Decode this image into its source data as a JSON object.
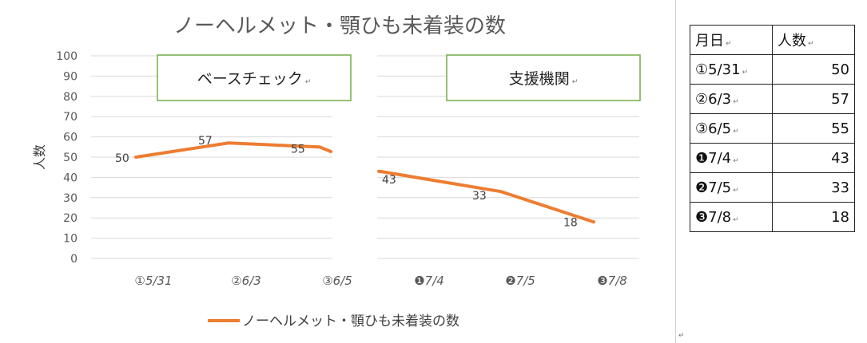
{
  "chart_data": {
    "type": "line",
    "title": "ノーヘルメット・顎ひも未着装の数",
    "ylabel": "人数",
    "xlabel": "",
    "ylim": [
      0,
      100
    ],
    "yticks": [
      0,
      10,
      20,
      30,
      40,
      50,
      60,
      70,
      80,
      90,
      100
    ],
    "categories": [
      "①5/31",
      "②6/3",
      "③6/5",
      "❶7/4",
      "❷7/5",
      "❸7/8"
    ],
    "series": [
      {
        "name": "ノーヘルメット・顎ひも未着装の数",
        "values": [
          50,
          57,
          55,
          43,
          33,
          18
        ],
        "color": "#ED7D31"
      }
    ],
    "segments": [
      {
        "label": "ベースチェック",
        "categories": [
          "①5/31",
          "②6/3",
          "③6/5"
        ]
      },
      {
        "label": "支援機関",
        "categories": [
          "❶7/4",
          "❷7/5",
          "❸7/8"
        ]
      }
    ],
    "legend_position": "bottom",
    "grid": true
  },
  "colors": {
    "box_border": "#70AD47",
    "gridline": "#d9d9d9",
    "line": "#ED7D31"
  },
  "table": {
    "headers": {
      "date": "月日",
      "count": "人数"
    },
    "rows": [
      {
        "date": "①5/31",
        "count": "50"
      },
      {
        "date": "②6/3",
        "count": "57"
      },
      {
        "date": "③6/5",
        "count": "55"
      },
      {
        "date": "❶7/4",
        "count": "43"
      },
      {
        "date": "❷7/5",
        "count": "33"
      },
      {
        "date": "❸7/8",
        "count": "18"
      }
    ]
  },
  "marks": {
    "cell_end": "↵"
  }
}
